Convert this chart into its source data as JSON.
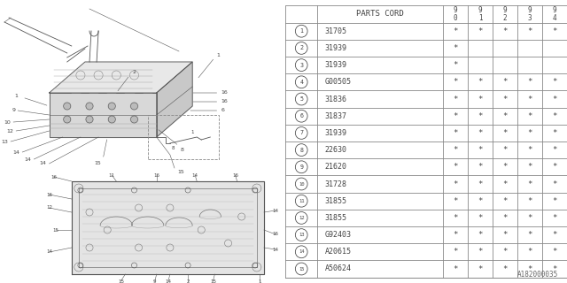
{
  "diagram_id": "A182000035",
  "bg_color": "#ffffff",
  "draw_color": "#666666",
  "table": {
    "header_col": "PARTS CORD",
    "year_cols": [
      "9\n0",
      "9\n1",
      "9\n2",
      "9\n3",
      "9\n4"
    ],
    "rows": [
      {
        "num": 1,
        "part": "31705",
        "marks": [
          true,
          true,
          true,
          true,
          true
        ]
      },
      {
        "num": 2,
        "part": "31939",
        "marks": [
          true,
          false,
          false,
          false,
          false
        ]
      },
      {
        "num": 3,
        "part": "31939",
        "marks": [
          true,
          false,
          false,
          false,
          false
        ]
      },
      {
        "num": 4,
        "part": "G00505",
        "marks": [
          true,
          true,
          true,
          true,
          true
        ]
      },
      {
        "num": 5,
        "part": "31836",
        "marks": [
          true,
          true,
          true,
          true,
          true
        ]
      },
      {
        "num": 6,
        "part": "31837",
        "marks": [
          true,
          true,
          true,
          true,
          true
        ]
      },
      {
        "num": 7,
        "part": "31939",
        "marks": [
          true,
          true,
          true,
          true,
          true
        ]
      },
      {
        "num": 8,
        "part": "22630",
        "marks": [
          true,
          true,
          true,
          true,
          true
        ]
      },
      {
        "num": 9,
        "part": "21620",
        "marks": [
          true,
          true,
          true,
          true,
          true
        ]
      },
      {
        "num": 10,
        "part": "31728",
        "marks": [
          true,
          true,
          true,
          true,
          true
        ]
      },
      {
        "num": 11,
        "part": "31855",
        "marks": [
          true,
          true,
          true,
          true,
          true
        ]
      },
      {
        "num": 12,
        "part": "31855",
        "marks": [
          true,
          true,
          true,
          true,
          true
        ]
      },
      {
        "num": 13,
        "part": "G92403",
        "marks": [
          true,
          true,
          true,
          true,
          true
        ]
      },
      {
        "num": 14,
        "part": "A20615",
        "marks": [
          true,
          true,
          true,
          true,
          true
        ]
      },
      {
        "num": 15,
        "part": "A50624",
        "marks": [
          true,
          true,
          true,
          true,
          true
        ]
      }
    ]
  },
  "line_color": "#888888",
  "text_color": "#444444",
  "font_size_main": 6.0,
  "font_size_header": 6.5,
  "font_size_year": 5.5,
  "font_size_id": 5.5
}
